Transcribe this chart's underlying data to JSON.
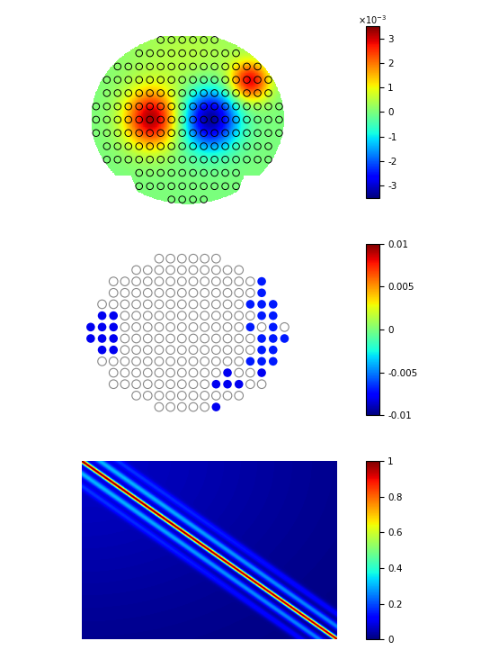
{
  "panel1_clim": [
    -0.0035,
    0.0035
  ],
  "panel1_ticks": [
    -3,
    -2,
    -1,
    0,
    1,
    2,
    3
  ],
  "panel2_clim": [
    -0.01,
    0.01
  ],
  "panel2_ticks": [
    -0.01,
    -0.005,
    0,
    0.005,
    0.01
  ],
  "panel3_clim": [
    0,
    1
  ],
  "panel3_ticks": [
    0,
    0.2,
    0.4,
    0.6,
    0.8,
    1
  ],
  "bg_color": "#ffffff"
}
